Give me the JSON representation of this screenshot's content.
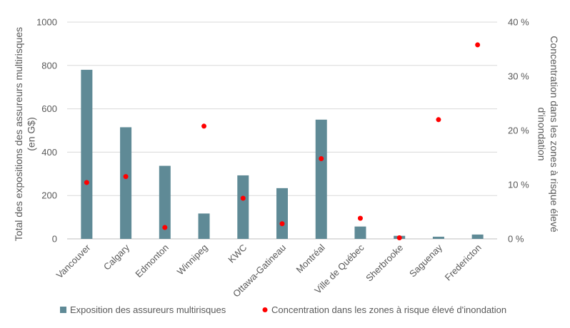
{
  "chart_data": {
    "type": "bar",
    "categories": [
      "Vancouver",
      "Calgary",
      "Edmonton",
      "Winnipeg",
      "KWC",
      "Ottawa-Gatineau",
      "Montréal",
      "Ville de Québec",
      "Sherbrooke",
      "Saguenay",
      "Fredericton"
    ],
    "series": [
      {
        "name": "Exposition des assureurs multirisques",
        "type": "bar",
        "axis": "left",
        "color": "#5f8a96",
        "values": [
          780,
          515,
          337,
          117,
          293,
          234,
          550,
          57,
          14,
          10,
          20
        ]
      },
      {
        "name": "Concentration dans les zones à risque élevé d'inondation",
        "type": "scatter",
        "axis": "right",
        "color": "#ff0000",
        "values": [
          10.4,
          11.5,
          2.1,
          20.8,
          7.5,
          2.8,
          14.8,
          3.8,
          0.2,
          22.0,
          35.8
        ]
      }
    ],
    "ylabel": "Total des expositions des assureurs multirisques (en G$)",
    "y2label": "Concentration dans les zones à risque élevé d'inondation",
    "ylim": [
      0,
      1000
    ],
    "y2lim": [
      0,
      40
    ],
    "yticks": [
      "0",
      "200",
      "400",
      "600",
      "800",
      "1000"
    ],
    "y2ticks": [
      "0 %",
      "10 %",
      "20 %",
      "30 %",
      "40 %"
    ],
    "grid": true,
    "legend": "bottom"
  }
}
